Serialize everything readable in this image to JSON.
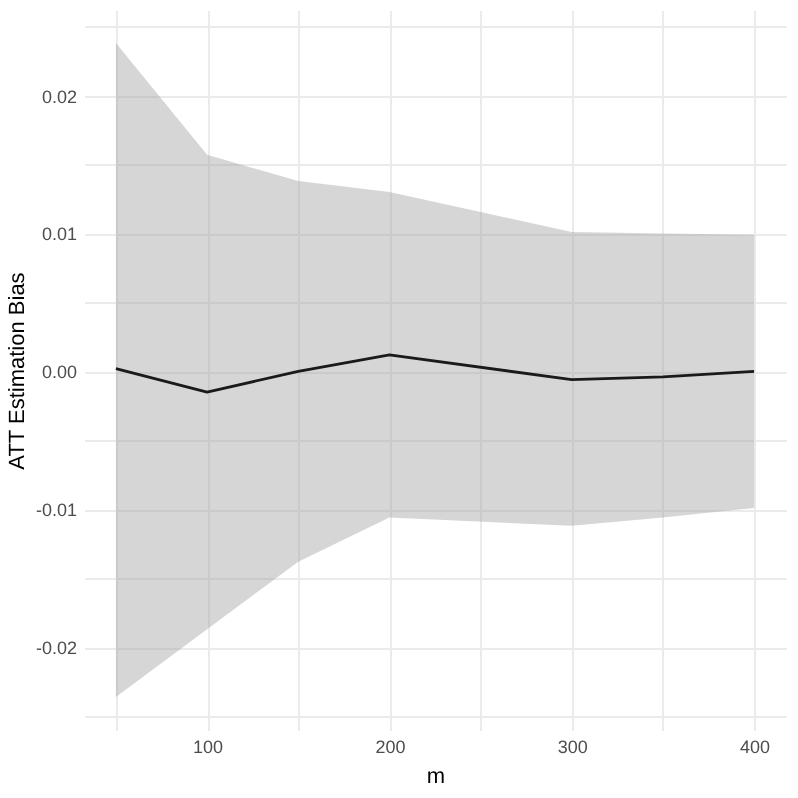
{
  "chart_data": {
    "type": "line",
    "xlabel": "m",
    "ylabel": "ATT Estimation Bias",
    "x": [
      50,
      100,
      150,
      200,
      300,
      350,
      400
    ],
    "series": [
      {
        "color": "#1a1a1a",
        "values": [
          0.0002,
          -0.0015,
          0.0,
          0.0012,
          -0.0006,
          -0.0004,
          0.0
        ],
        "lower": [
          -0.0236,
          -0.0187,
          -0.0138,
          -0.0106,
          -0.0112,
          -0.0106,
          -0.0099
        ],
        "upper": [
          0.0238,
          0.0157,
          0.0138,
          0.013,
          0.0101,
          0.01,
          0.0099
        ]
      }
    ],
    "xlim": [
      32.5,
      417.5
    ],
    "ylim": [
      -0.026,
      0.0262
    ],
    "xticks": [
      {
        "value": 50,
        "label": null
      },
      100,
      {
        "value": 150,
        "label": null
      },
      200,
      {
        "value": 250,
        "label": null
      },
      300,
      {
        "value": 350,
        "label": null
      },
      400
    ],
    "yticks": [
      {
        "value": -0.025,
        "label": null
      },
      {
        "value": -0.02,
        "label": "-0.02"
      },
      {
        "value": -0.015,
        "label": null
      },
      {
        "value": -0.01,
        "label": "-0.01"
      },
      {
        "value": -0.005,
        "label": null
      },
      {
        "value": 0,
        "label": "0.00"
      },
      {
        "value": 0.005,
        "label": null
      },
      {
        "value": 0.01,
        "label": "0.01"
      },
      {
        "value": 0.015,
        "label": null
      },
      {
        "value": 0.02,
        "label": "0.02"
      },
      {
        "value": 0.025,
        "label": null
      }
    ],
    "grid": true,
    "marker": "none",
    "line_style": "solid"
  }
}
